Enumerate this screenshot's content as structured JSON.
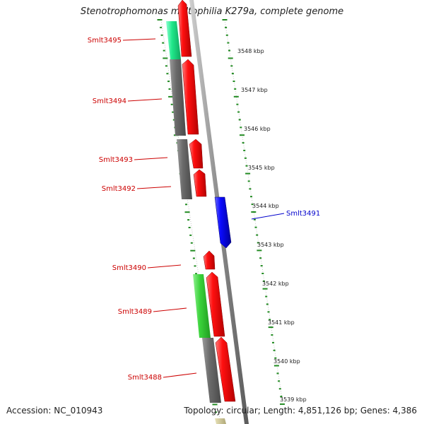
{
  "title": "Stenotrophomonas maltophilia K279a, complete genome",
  "footer": {
    "accession": "Accession: NC_010943",
    "topology": "Topology: circular; Length: 4,851,126 bp; Genes: 4,386"
  },
  "colors": {
    "cds_red": "#ff0000",
    "cds_blue": "#0000ff",
    "feature_gray": "#6e6e6e",
    "feature_green": "#3fd23f",
    "feature_teal_green": "#22e88c",
    "feature_khaki": "#c8c296",
    "tick_green": "#228b22",
    "backbone": "#8c8c8c"
  },
  "gene_labels": [
    {
      "name": "Smlt3495",
      "strand": "forward"
    },
    {
      "name": "Smlt3494",
      "strand": "forward"
    },
    {
      "name": "Smlt3493",
      "strand": "forward"
    },
    {
      "name": "Smlt3492",
      "strand": "forward"
    },
    {
      "name": "Smlt3491",
      "strand": "reverse"
    },
    {
      "name": "Smlt3490",
      "strand": "forward"
    },
    {
      "name": "Smlt3489",
      "strand": "forward"
    },
    {
      "name": "Smlt3488",
      "strand": "forward"
    }
  ],
  "kbp_labels": [
    "3548 kbp",
    "3547 kbp",
    "3546 kbp",
    "3545 kbp",
    "3544 kbp",
    "3543 kbp",
    "3542 kbp",
    "3541 kbp",
    "3540 kbp",
    "3539 kbp"
  ]
}
